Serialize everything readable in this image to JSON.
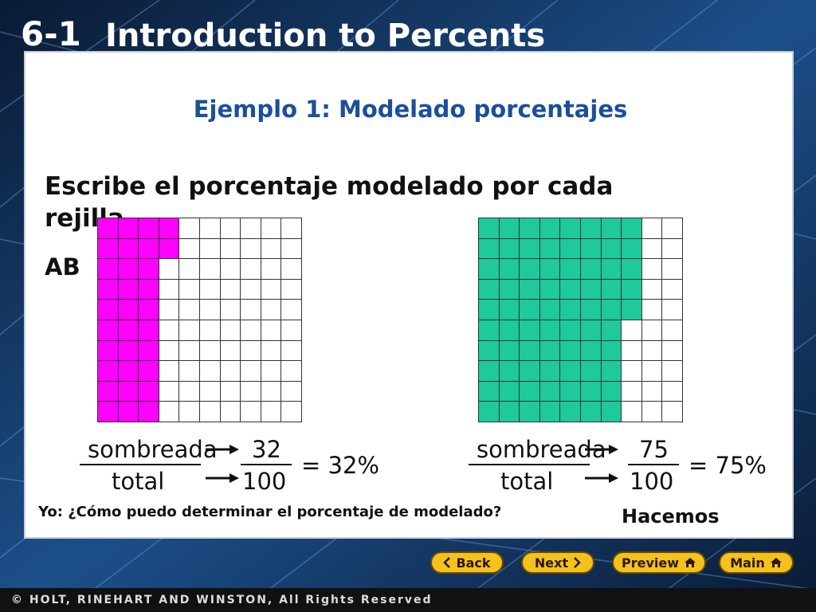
{
  "header": {
    "lesson_number": "6-1",
    "lesson_title": "Introduction to Percents"
  },
  "content": {
    "example_title": "Ejemplo 1: Modelado porcentajes",
    "instruction": "Escribe el porcentaje modelado por cada rejilla",
    "labels": "AB",
    "objective": "Yo: ¿Cómo puedo determinar el porcentaje de modelado?",
    "we_do": "Hacemos"
  },
  "grid_a": {
    "color": "#ff00ff",
    "shaded_count": 32
  },
  "grid_b": {
    "color": "#1ec99b",
    "shaded_count": 75
  },
  "fraction_a": {
    "num_label": "sombreada",
    "den_label": "total",
    "numerator": "32",
    "denominator": "100",
    "result": "= 32%"
  },
  "fraction_b": {
    "num_label": "sombreada",
    "den_label": "total",
    "numerator": "75",
    "denominator": "100",
    "result": "= 75%"
  },
  "nav": {
    "back": "Back",
    "next": "Next",
    "preview": "Preview",
    "main": "Main",
    "back_icon": "chevron-left-icon",
    "next_icon": "chevron-right-icon",
    "preview_icon": "home-icon",
    "main_icon": "home-icon"
  },
  "footer": {
    "copyright": "© HOLT, RINEHART AND WINSTON, All Rights Reserved"
  }
}
